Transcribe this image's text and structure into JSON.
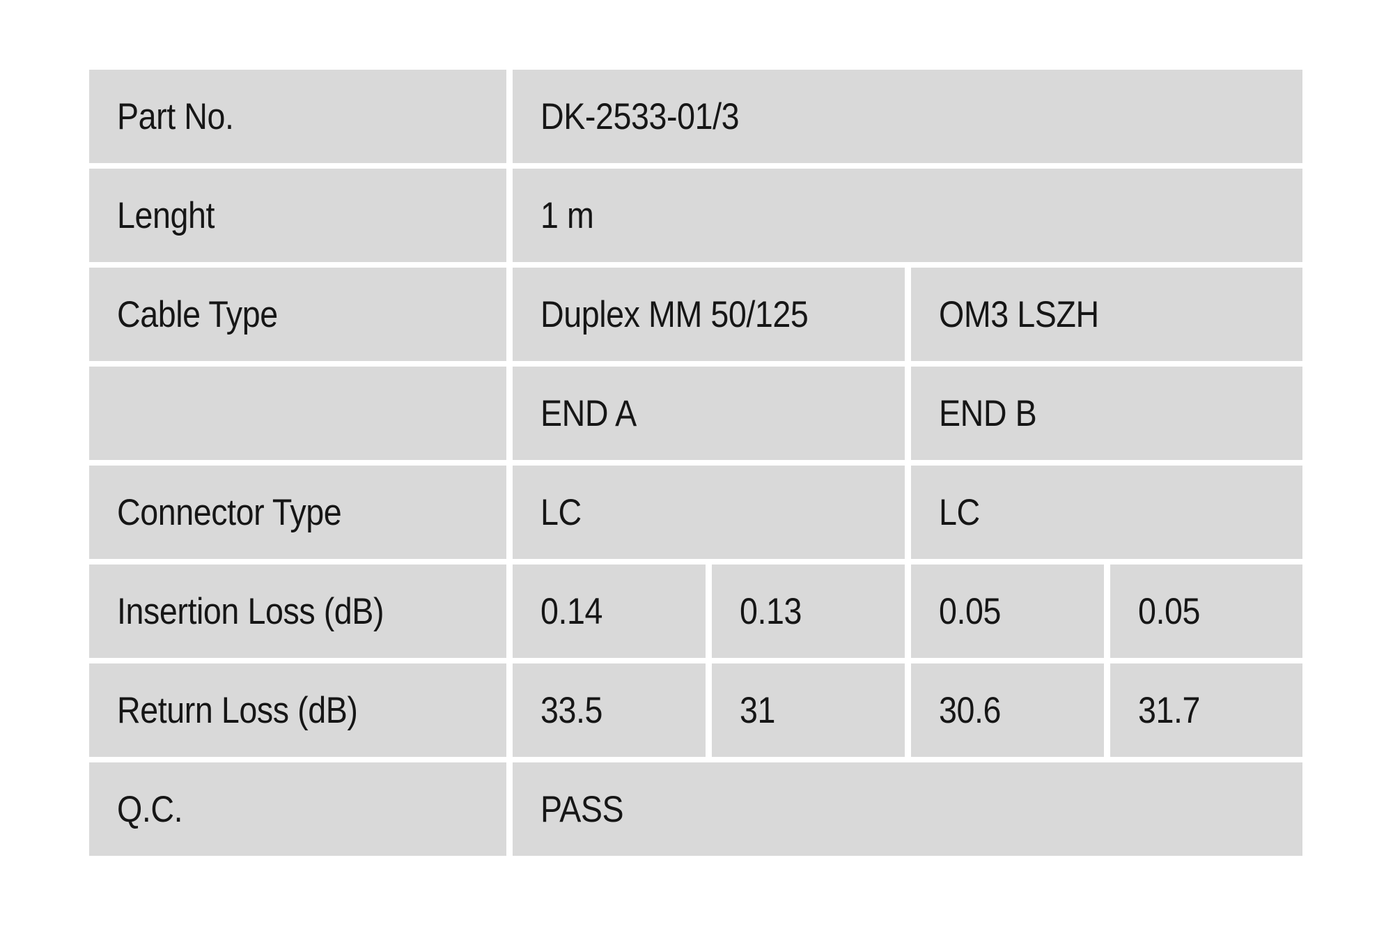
{
  "page": {
    "background_color": "#ffffff",
    "cell_background_color": "#d9d9d9",
    "text_color": "#161616"
  },
  "table": {
    "rows": [
      {
        "label": "Part No.",
        "cells": [
          {
            "text": "DK-2533-01/3"
          }
        ]
      },
      {
        "label": "Lenght",
        "cells": [
          {
            "text": "1 m"
          }
        ]
      },
      {
        "label": "Cable Type",
        "cells": [
          {
            "text": "Duplex MM 50/125"
          },
          {
            "text": "OM3 LSZH"
          }
        ]
      },
      {
        "label": "",
        "cells": [
          {
            "text": "END A"
          },
          {
            "text": "END B"
          }
        ]
      },
      {
        "label": "Connector Type",
        "cells": [
          {
            "text": "LC"
          },
          {
            "text": "LC"
          }
        ]
      },
      {
        "label": "Insertion Loss (dB)",
        "cells": [
          {
            "text": "0.14"
          },
          {
            "text": "0.13"
          },
          {
            "text": "0.05"
          },
          {
            "text": "0.05"
          }
        ]
      },
      {
        "label": "Return Loss (dB)",
        "cells": [
          {
            "text": "33.5"
          },
          {
            "text": "31"
          },
          {
            "text": "30.6"
          },
          {
            "text": "31.7"
          }
        ]
      },
      {
        "label": "Q.C.",
        "cells": [
          {
            "text": "PASS"
          }
        ]
      }
    ]
  }
}
